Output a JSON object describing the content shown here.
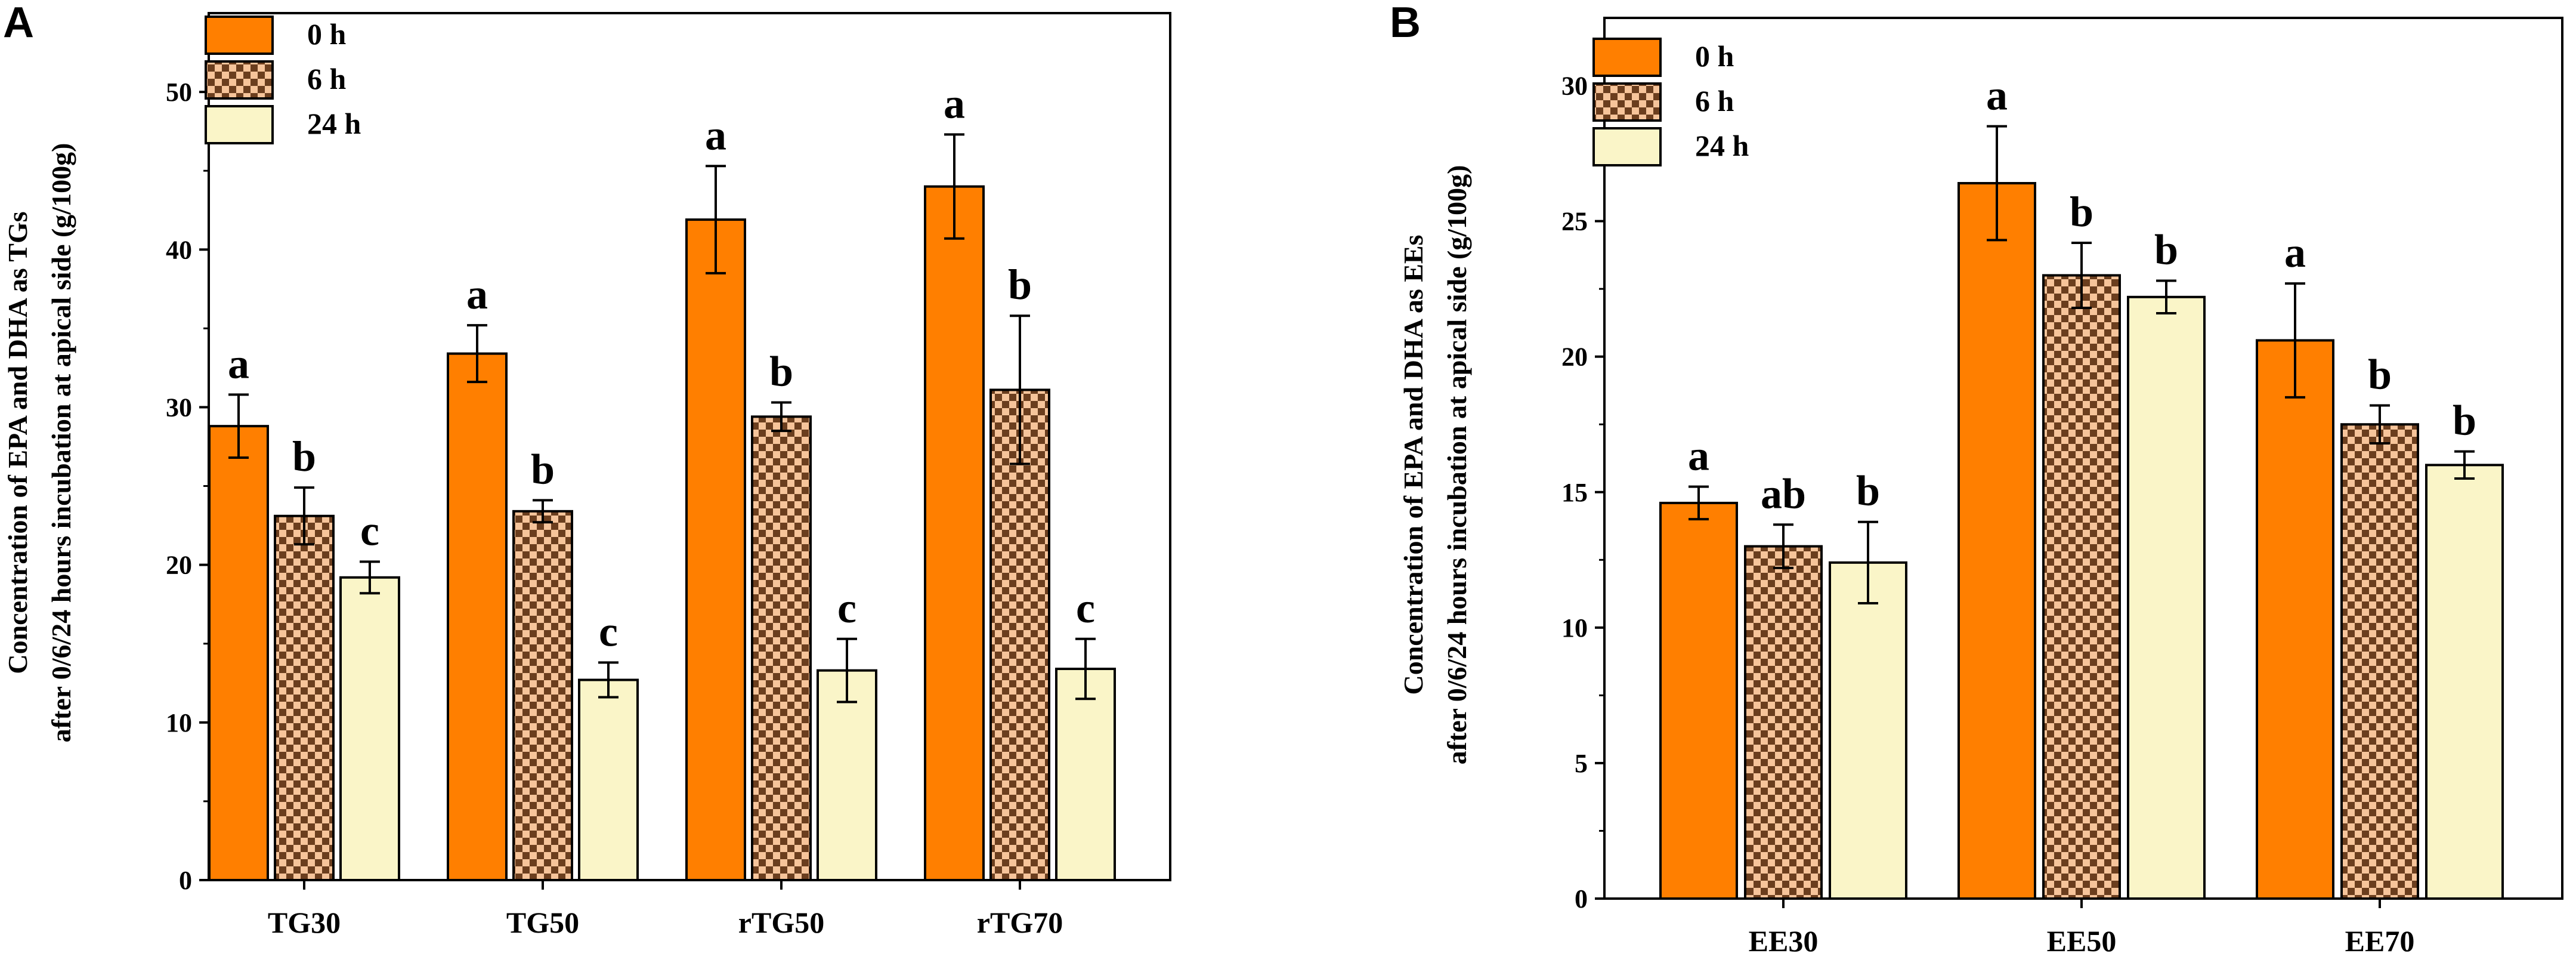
{
  "colors": {
    "h0_fill": "#FF7F00",
    "h6_base": "#F6C49A",
    "h6_dot": "#6B3E1E",
    "h24_fill": "#FAF5C8",
    "stroke": "#000000"
  },
  "chart_data": [
    {
      "type": "bar",
      "panel": "A",
      "ylabel_line1": "Concentration of EPA and DHA as TGs",
      "ylabel_line2": "after 0/6/24 hours incubation  at apical side (g/100g)",
      "xlabel": "",
      "ylim": [
        0,
        55
      ],
      "yticks": [
        0,
        10,
        20,
        30,
        40,
        50
      ],
      "legend_position": "top-left",
      "categories": [
        "TG30",
        "TG50",
        "rTG50",
        "rTG70"
      ],
      "series": [
        {
          "name": "0 h",
          "pattern": "solid",
          "values": [
            28.8,
            33.4,
            41.9,
            44.0
          ],
          "errors": [
            2.0,
            1.8,
            3.4,
            3.3
          ],
          "labels": [
            "a",
            "a",
            "a",
            "a"
          ]
        },
        {
          "name": "6 h",
          "pattern": "checker",
          "values": [
            23.1,
            23.4,
            29.4,
            31.1
          ],
          "errors": [
            1.8,
            0.7,
            0.9,
            4.7
          ],
          "labels": [
            "b",
            "b",
            "b",
            "b"
          ]
        },
        {
          "name": "24 h",
          "pattern": "solid",
          "values": [
            19.2,
            12.7,
            13.3,
            13.4
          ],
          "errors": [
            1.0,
            1.1,
            2.0,
            1.9
          ],
          "labels": [
            "c",
            "c",
            "c",
            "c"
          ]
        }
      ]
    },
    {
      "type": "bar",
      "panel": "B",
      "ylabel_line1": "Concentration of EPA and DHA as EEs",
      "ylabel_line2": "after 0/6/24 hours incubation  at apical side (g/100g)",
      "xlabel": "",
      "ylim": [
        0,
        32.5
      ],
      "yticks": [
        0,
        5,
        10,
        15,
        20,
        25,
        30
      ],
      "legend_position": "top-left",
      "categories": [
        "EE30",
        "EE50",
        "EE70"
      ],
      "series": [
        {
          "name": "0 h",
          "pattern": "solid",
          "values": [
            14.6,
            26.4,
            20.6
          ],
          "errors": [
            0.6,
            2.1,
            2.1
          ],
          "labels": [
            "a",
            "a",
            "a"
          ]
        },
        {
          "name": "6 h",
          "pattern": "checker",
          "values": [
            13.0,
            23.0,
            17.5
          ],
          "errors": [
            0.8,
            1.2,
            0.7
          ],
          "labels": [
            "ab",
            "b",
            "b"
          ]
        },
        {
          "name": "24 h",
          "pattern": "solid",
          "values": [
            12.4,
            22.2,
            16.0
          ],
          "errors": [
            1.5,
            0.6,
            0.5
          ],
          "labels": [
            "b",
            "b",
            "b"
          ]
        }
      ]
    }
  ]
}
